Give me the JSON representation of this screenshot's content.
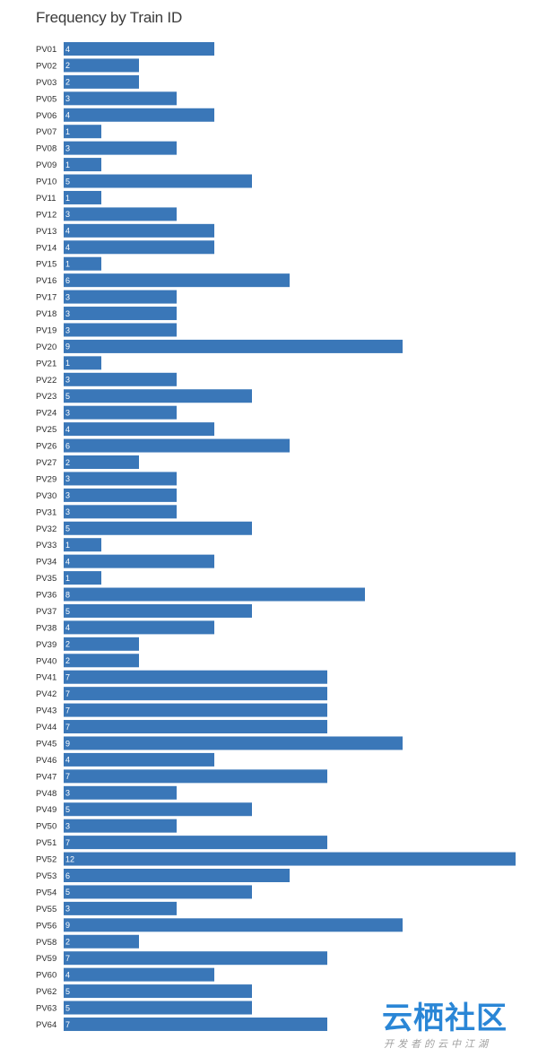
{
  "chart_data": {
    "type": "bar",
    "orientation": "horizontal",
    "title": "Frequency by Train ID",
    "xlabel": "",
    "ylabel": "",
    "xlim": [
      0,
      12
    ],
    "grid": false,
    "bar_color": "#3a77b8",
    "categories": [
      "PV01",
      "PV02",
      "PV03",
      "PV05",
      "PV06",
      "PV07",
      "PV08",
      "PV09",
      "PV10",
      "PV11",
      "PV12",
      "PV13",
      "PV14",
      "PV15",
      "PV16",
      "PV17",
      "PV18",
      "PV19",
      "PV20",
      "PV21",
      "PV22",
      "PV23",
      "PV24",
      "PV25",
      "PV26",
      "PV27",
      "PV29",
      "PV30",
      "PV31",
      "PV32",
      "PV33",
      "PV34",
      "PV35",
      "PV36",
      "PV37",
      "PV38",
      "PV39",
      "PV40",
      "PV41",
      "PV42",
      "PV43",
      "PV44",
      "PV45",
      "PV46",
      "PV47",
      "PV48",
      "PV49",
      "PV50",
      "PV51",
      "PV52",
      "PV53",
      "PV54",
      "PV55",
      "PV56",
      "PV58",
      "PV59",
      "PV60",
      "PV62",
      "PV63",
      "PV64"
    ],
    "values": [
      4,
      2,
      2,
      3,
      4,
      1,
      3,
      1,
      5,
      1,
      3,
      4,
      4,
      1,
      6,
      3,
      3,
      3,
      9,
      1,
      3,
      5,
      3,
      4,
      6,
      2,
      3,
      3,
      3,
      5,
      1,
      4,
      1,
      8,
      5,
      4,
      2,
      2,
      7,
      7,
      7,
      7,
      9,
      4,
      7,
      3,
      5,
      3,
      7,
      12,
      6,
      5,
      3,
      9,
      2,
      7,
      4,
      5,
      5,
      7
    ]
  },
  "watermark": {
    "main": "云栖社区",
    "sub": "开发者的云中江湖"
  }
}
